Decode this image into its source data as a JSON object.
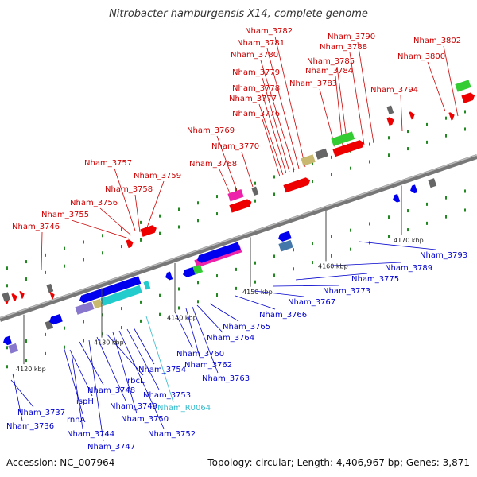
{
  "header": {
    "title": "Nitrobacter hamburgensis X14, complete genome"
  },
  "footer": {
    "accession": "Accession: NC_007964",
    "summary": "Topology: circular; Length: 4,406,967 bp; Genes: 3,871"
  },
  "colors": {
    "forward_label": "#cc0000",
    "reverse_label": "#0000cc",
    "rna_label": "#33bbcc",
    "backbone": "#888888",
    "forward_arrow": "#ee0000",
    "reverse_arrow": "#0000ee",
    "orf_green": "#33cc33",
    "orf_olive": "#c8b870",
    "orf_magenta": "#ee22aa",
    "orf_gray": "#666666",
    "orf_cyan": "#22cccc",
    "orf_purple": "#8877cc",
    "orf_steel": "#4477aa",
    "tick_green": "#228822"
  },
  "scale_ticks": [
    "4120 kbp",
    "4130 kbp",
    "4140 kbp",
    "4150 kbp",
    "4160 kbp",
    "4170 kbp"
  ],
  "forward_labels": [
    "Nham_3746",
    "Nham_3755",
    "Nham_3756",
    "Nham_3758",
    "Nham_3757",
    "Nham_3759",
    "Nham_3768",
    "Nham_3769",
    "Nham_3770",
    "Nham_3776",
    "Nham_3777",
    "Nham_3778",
    "Nham_3779",
    "Nham_3780",
    "Nham_3781",
    "Nham_3782",
    "Nham_3783",
    "Nham_3784",
    "Nham_3785",
    "Nham_3788",
    "Nham_3790",
    "Nham_3794",
    "Nham_3800",
    "Nham_3802"
  ],
  "reverse_labels": [
    "Nham_3737",
    "Nham_3736",
    "rnhA",
    "ispH",
    "Nham_3744",
    "Nham_3748",
    "Nham_3747",
    "Nham_3749",
    "rbcL",
    "Nham_3750",
    "Nham_3752",
    "Nham_3753",
    "Nham_3754",
    "Nham_R0064",
    "Nham_3760",
    "Nham_3762",
    "Nham_3763",
    "Nham_3764",
    "Nham_3765",
    "Nham_3766",
    "Nham_3767",
    "Nham_3773",
    "Nham_3775",
    "Nham_3789",
    "Nham_3793"
  ]
}
